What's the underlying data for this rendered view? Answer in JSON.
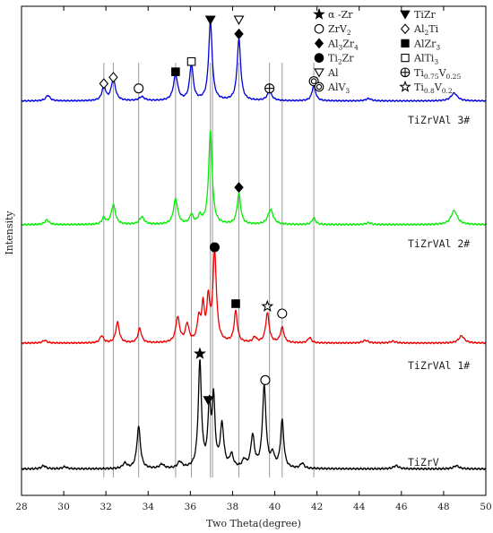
{
  "chart_data": {
    "type": "line",
    "title": "",
    "xlabel": "Two Theta(degree)",
    "ylabel": "Intensity",
    "xlim": [
      28,
      50
    ],
    "xticks": [
      28,
      30,
      32,
      34,
      36,
      38,
      40,
      42,
      44,
      46,
      48,
      50
    ],
    "grid": false,
    "legend_position": "top-right",
    "reference_lines_x": [
      31.9,
      32.35,
      33.55,
      35.3,
      36.05,
      36.95,
      37.05,
      38.3,
      39.75,
      40.35,
      41.85
    ],
    "legend": [
      {
        "symbol": "star-filled",
        "parts": [
          {
            "t": "α -Zr"
          }
        ]
      },
      {
        "symbol": "triangle-down-filled",
        "parts": [
          {
            "t": "TiZr"
          }
        ]
      },
      {
        "symbol": "circle-open",
        "parts": [
          {
            "t": "ZrV"
          },
          {
            "t": "2",
            "sub": true
          }
        ]
      },
      {
        "symbol": "diamond-open",
        "parts": [
          {
            "t": "Al"
          },
          {
            "t": "2",
            "sub": true
          },
          {
            "t": "Ti"
          }
        ]
      },
      {
        "symbol": "diamond-filled",
        "parts": [
          {
            "t": "Al"
          },
          {
            "t": "3",
            "sub": true
          },
          {
            "t": "Zr"
          },
          {
            "t": "4",
            "sub": true
          }
        ]
      },
      {
        "symbol": "square-filled",
        "parts": [
          {
            "t": "AlZr"
          },
          {
            "t": "3",
            "sub": true
          }
        ]
      },
      {
        "symbol": "circle-filled",
        "parts": [
          {
            "t": "Ti"
          },
          {
            "t": "2",
            "sub": true
          },
          {
            "t": "Zr"
          }
        ]
      },
      {
        "symbol": "square-open",
        "parts": [
          {
            "t": "AlTi"
          },
          {
            "t": "3",
            "sub": true
          }
        ]
      },
      {
        "symbol": "triangle-down-open",
        "parts": [
          {
            "t": "Al"
          }
        ]
      },
      {
        "symbol": "circle-plus",
        "parts": [
          {
            "t": "Ti"
          },
          {
            "t": "0.75",
            "sub": true
          },
          {
            "t": "V"
          },
          {
            "t": "0.25",
            "sub": true
          }
        ]
      },
      {
        "symbol": "double-circle",
        "parts": [
          {
            "t": "AlV"
          },
          {
            "t": "3",
            "sub": true
          }
        ]
      },
      {
        "symbol": "star-open",
        "parts": [
          {
            "t": "Ti"
          },
          {
            "t": "0.8",
            "sub": true
          },
          {
            "t": "V"
          },
          {
            "t": "0.2",
            "sub": true
          }
        ]
      }
    ],
    "series": [
      {
        "name": "TiZrVAl 3#",
        "color": "#0000dd",
        "baseline": 0.06,
        "peaks": [
          {
            "x": 29.25,
            "h": 0.07,
            "w": 0.12
          },
          {
            "x": 31.9,
            "h": 0.19,
            "w": 0.1
          },
          {
            "x": 32.35,
            "h": 0.27,
            "w": 0.12
          },
          {
            "x": 33.7,
            "h": 0.05,
            "w": 0.15
          },
          {
            "x": 35.3,
            "h": 0.33,
            "w": 0.12
          },
          {
            "x": 36.05,
            "h": 0.46,
            "w": 0.1
          },
          {
            "x": 36.95,
            "h": 1.0,
            "w": 0.1
          },
          {
            "x": 38.3,
            "h": 0.78,
            "w": 0.1
          },
          {
            "x": 39.75,
            "h": 0.11,
            "w": 0.14
          },
          {
            "x": 41.85,
            "h": 0.2,
            "w": 0.1
          },
          {
            "x": 44.45,
            "h": 0.03,
            "w": 0.15
          },
          {
            "x": 48.5,
            "h": 0.1,
            "w": 0.18
          }
        ]
      },
      {
        "name": "TiZrVAl 2#",
        "color": "#00ee00",
        "baseline": 0.05,
        "peaks": [
          {
            "x": 29.2,
            "h": 0.05,
            "w": 0.12
          },
          {
            "x": 31.9,
            "h": 0.07,
            "w": 0.1
          },
          {
            "x": 32.35,
            "h": 0.21,
            "w": 0.12
          },
          {
            "x": 33.7,
            "h": 0.08,
            "w": 0.14
          },
          {
            "x": 35.3,
            "h": 0.27,
            "w": 0.12
          },
          {
            "x": 36.05,
            "h": 0.1,
            "w": 0.1
          },
          {
            "x": 36.45,
            "h": 0.08,
            "w": 0.1
          },
          {
            "x": 36.95,
            "h": 1.0,
            "w": 0.1
          },
          {
            "x": 38.3,
            "h": 0.33,
            "w": 0.1
          },
          {
            "x": 39.8,
            "h": 0.16,
            "w": 0.15
          },
          {
            "x": 41.85,
            "h": 0.07,
            "w": 0.1
          },
          {
            "x": 44.45,
            "h": 0.02,
            "w": 0.15
          },
          {
            "x": 48.5,
            "h": 0.15,
            "w": 0.18
          }
        ]
      },
      {
        "name": "TiZrVAl 1#",
        "color": "#ee0000",
        "baseline": 0.03,
        "peaks": [
          {
            "x": 29.1,
            "h": 0.03,
            "w": 0.12
          },
          {
            "x": 31.8,
            "h": 0.08,
            "w": 0.1
          },
          {
            "x": 32.55,
            "h": 0.23,
            "w": 0.1
          },
          {
            "x": 33.6,
            "h": 0.16,
            "w": 0.1
          },
          {
            "x": 35.4,
            "h": 0.28,
            "w": 0.11
          },
          {
            "x": 35.85,
            "h": 0.2,
            "w": 0.1
          },
          {
            "x": 36.4,
            "h": 0.25,
            "w": 0.09
          },
          {
            "x": 36.6,
            "h": 0.38,
            "w": 0.08
          },
          {
            "x": 36.85,
            "h": 0.45,
            "w": 0.08
          },
          {
            "x": 37.15,
            "h": 1.0,
            "w": 0.1
          },
          {
            "x": 38.15,
            "h": 0.35,
            "w": 0.09
          },
          {
            "x": 39.05,
            "h": 0.06,
            "w": 0.1
          },
          {
            "x": 39.65,
            "h": 0.33,
            "w": 0.1
          },
          {
            "x": 40.35,
            "h": 0.17,
            "w": 0.1
          },
          {
            "x": 41.65,
            "h": 0.06,
            "w": 0.1
          },
          {
            "x": 44.3,
            "h": 0.03,
            "w": 0.15
          },
          {
            "x": 45.6,
            "h": 0.02,
            "w": 0.15
          },
          {
            "x": 48.85,
            "h": 0.08,
            "w": 0.16
          }
        ]
      },
      {
        "name": "TiZrV",
        "color": "#000000",
        "baseline": 0.03,
        "peaks": [
          {
            "x": 29.05,
            "h": 0.03,
            "w": 0.12
          },
          {
            "x": 30.05,
            "h": 0.02,
            "w": 0.12
          },
          {
            "x": 32.9,
            "h": 0.05,
            "w": 0.12
          },
          {
            "x": 33.55,
            "h": 0.4,
            "w": 0.1
          },
          {
            "x": 34.65,
            "h": 0.04,
            "w": 0.12
          },
          {
            "x": 35.5,
            "h": 0.06,
            "w": 0.12
          },
          {
            "x": 36.45,
            "h": 1.0,
            "w": 0.09
          },
          {
            "x": 36.9,
            "h": 0.56,
            "w": 0.08
          },
          {
            "x": 37.1,
            "h": 0.63,
            "w": 0.08
          },
          {
            "x": 37.5,
            "h": 0.4,
            "w": 0.1
          },
          {
            "x": 37.95,
            "h": 0.12,
            "w": 0.1
          },
          {
            "x": 38.55,
            "h": 0.07,
            "w": 0.1
          },
          {
            "x": 38.95,
            "h": 0.3,
            "w": 0.1
          },
          {
            "x": 39.5,
            "h": 0.77,
            "w": 0.1
          },
          {
            "x": 39.9,
            "h": 0.12,
            "w": 0.1
          },
          {
            "x": 40.35,
            "h": 0.45,
            "w": 0.09
          },
          {
            "x": 41.3,
            "h": 0.05,
            "w": 0.1
          },
          {
            "x": 45.75,
            "h": 0.03,
            "w": 0.15
          },
          {
            "x": 48.6,
            "h": 0.03,
            "w": 0.15
          }
        ]
      }
    ],
    "peak_markers": [
      {
        "series": 0,
        "symbol": "diamond-open",
        "x": 31.9,
        "h": 0.28
      },
      {
        "series": 0,
        "symbol": "diamond-open",
        "x": 32.35,
        "h": 0.36
      },
      {
        "series": 0,
        "symbol": "circle-open",
        "x": 33.55,
        "h": 0.22
      },
      {
        "series": 0,
        "symbol": "square-filled",
        "x": 35.3,
        "h": 0.43
      },
      {
        "series": 0,
        "symbol": "square-open",
        "x": 36.05,
        "h": 0.56
      },
      {
        "series": 0,
        "symbol": "triangle-down-filled",
        "x": 36.95,
        "h": 1.09
      },
      {
        "series": 0,
        "symbol": "triangle-down-open",
        "x": 38.3,
        "h": 1.09
      },
      {
        "series": 0,
        "symbol": "diamond-filled",
        "x": 38.3,
        "h": 0.91
      },
      {
        "series": 0,
        "symbol": "circle-plus",
        "x": 39.75,
        "h": 0.22
      },
      {
        "series": 0,
        "symbol": "double-circle",
        "x": 41.85,
        "h": 0.31
      },
      {
        "series": 1,
        "symbol": "diamond-filled",
        "x": 38.3,
        "h": 0.45
      },
      {
        "series": 2,
        "symbol": "circle-filled",
        "x": 37.15,
        "h": 1.1
      },
      {
        "series": 2,
        "symbol": "square-filled",
        "x": 38.15,
        "h": 0.47
      },
      {
        "series": 2,
        "symbol": "star-open",
        "x": 39.65,
        "h": 0.44
      },
      {
        "series": 2,
        "symbol": "circle-open",
        "x": 40.35,
        "h": 0.36
      },
      {
        "series": 3,
        "symbol": "star-filled",
        "x": 36.45,
        "h": 1.12
      },
      {
        "series": 3,
        "symbol": "triangle-down-filled",
        "x": 36.85,
        "h": 0.68
      },
      {
        "series": 3,
        "symbol": "circle-open",
        "x": 39.55,
        "h": 0.87
      }
    ]
  }
}
